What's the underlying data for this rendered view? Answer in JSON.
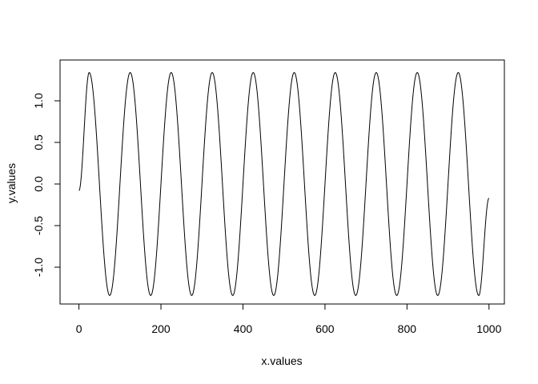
{
  "chart_data": {
    "type": "line",
    "title": "",
    "xlabel": "x.values",
    "ylabel": "y.values",
    "xlim": [
      0,
      1000
    ],
    "ylim": [
      -1.35,
      1.35
    ],
    "xticks": [
      0,
      200,
      400,
      600,
      800,
      1000
    ],
    "xtick_labels": [
      "0",
      "200",
      "400",
      "600",
      "800",
      "1000"
    ],
    "yticks": [
      -1.0,
      -0.5,
      0.0,
      0.5,
      1.0
    ],
    "ytick_labels": [
      "-1.0",
      "-0.5",
      "0.0",
      "0.5",
      "1.0"
    ],
    "grid": false,
    "legend": "none",
    "line_color": "#000000",
    "series": [
      {
        "x": [
          0,
          25,
          75,
          125,
          175,
          225,
          275,
          325,
          375,
          425,
          475,
          525,
          575,
          625,
          675,
          725,
          775,
          825,
          875,
          925,
          975,
          1000
        ],
        "values": [
          -0.08,
          1.34,
          -1.34,
          1.34,
          -1.34,
          1.34,
          -1.34,
          1.34,
          -1.34,
          1.34,
          -1.34,
          1.34,
          -1.34,
          1.34,
          -1.34,
          1.34,
          -1.34,
          1.34,
          -1.34,
          1.34,
          -1.34,
          -0.17
        ]
      }
    ]
  }
}
